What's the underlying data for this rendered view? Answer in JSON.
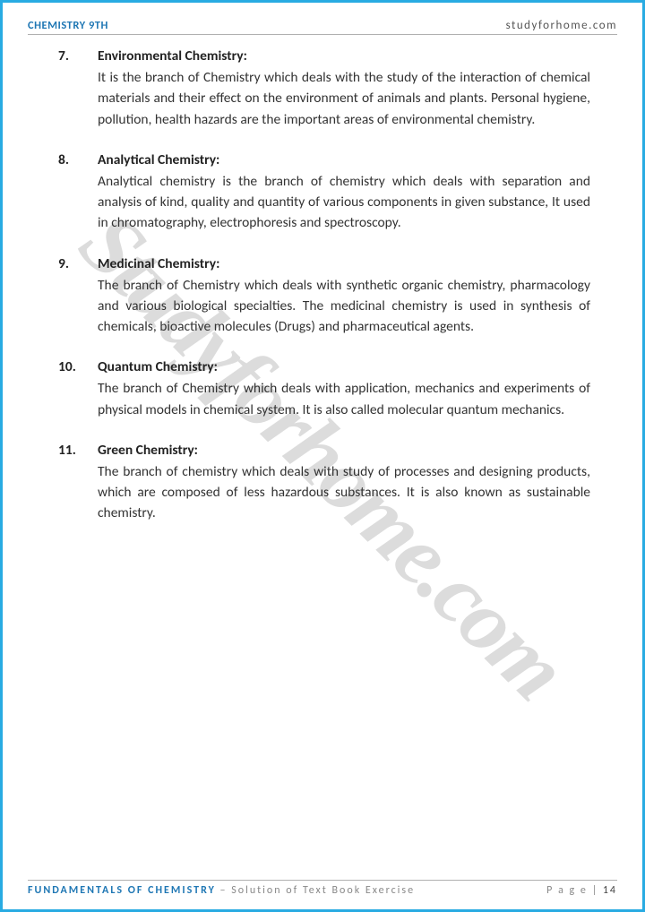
{
  "header": {
    "left": "CHEMISTRY 9TH",
    "right": "studyforhome.com"
  },
  "watermark": "Studyforhome.com",
  "items": [
    {
      "num": "7.",
      "title": "Environmental Chemistry:",
      "text": "It is the branch of Chemistry which deals with the study of the interaction of chemical materials and their effect on the environment of animals and plants. Personal hygiene, pollution, health hazards are the important areas of environmental chemistry."
    },
    {
      "num": "8.",
      "title": "Analytical Chemistry:",
      "text": "Analytical chemistry is the branch of chemistry which deals with separation and analysis of kind, quality and quantity of various components in given substance, It used in chromatography, electrophoresis and spectroscopy."
    },
    {
      "num": "9.",
      "title": "Medicinal Chemistry:",
      "text": "The branch of Chemistry which deals with synthetic organic chemistry, pharmacology and various biological specialties. The medicinal chemistry is used in synthesis of chemicals, bioactive molecules (Drugs) and pharmaceutical agents."
    },
    {
      "num": "10.",
      "title": "Quantum Chemistry:",
      "text": "The branch of Chemistry which deals with application, mechanics and experiments of physical models in chemical system. It is also called molecular quantum mechanics."
    },
    {
      "num": "11.",
      "title": "Green Chemistry:",
      "text": "The branch of chemistry which deals with study of processes and designing products, which are composed of less hazardous substances. It is also known as sustainable chemistry."
    }
  ],
  "footer": {
    "title": "FUNDAMENTALS OF CHEMISTRY",
    "subtitle": " – Solution of Text Book Exercise",
    "page_label": "P a g e  | ",
    "page_num": "14"
  }
}
